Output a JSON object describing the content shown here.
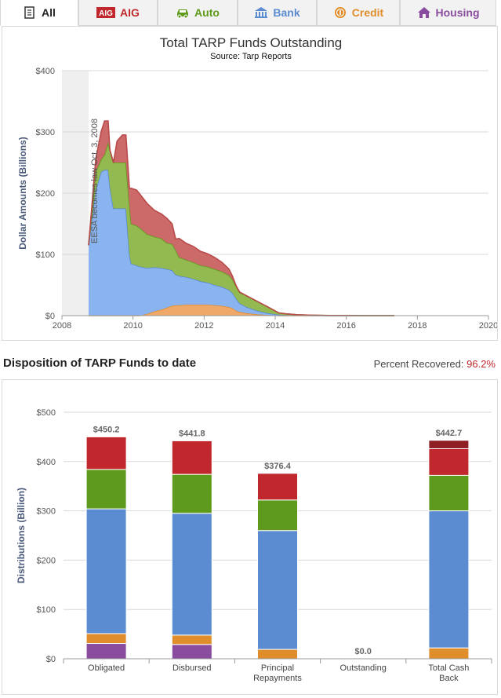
{
  "tabs": [
    {
      "label": "All",
      "icon": "document-icon",
      "color": "#222222",
      "active": true
    },
    {
      "label": "AIG",
      "icon": "aig-logo-icon",
      "color": "#c0282d",
      "active": false
    },
    {
      "label": "Auto",
      "icon": "car-icon",
      "color": "#5e9a1b",
      "active": false
    },
    {
      "label": "Bank",
      "icon": "bank-icon",
      "color": "#5b8bd0",
      "active": false
    },
    {
      "label": "Credit",
      "icon": "coin-icon",
      "color": "#e08d2b",
      "active": false
    },
    {
      "label": "Housing",
      "icon": "house-icon",
      "color": "#8a4c9e",
      "active": false
    }
  ],
  "aig_logo_text": "AIG",
  "section": {
    "title": "Disposition of TARP Funds to date",
    "recovered_label": "Percent Recovered:",
    "recovered_value": "96.2%"
  },
  "chart_data": [
    {
      "type": "area",
      "stacked": true,
      "title": "Total TARP Funds Outstanding",
      "subtitle": "Source: Tarp Reports",
      "ylabel": "Dollar Amounts (Billions)",
      "xlim": [
        2008,
        2020
      ],
      "ylim": [
        0,
        400
      ],
      "x_ticks": [
        "2008",
        "2010",
        "2012",
        "2014",
        "2016",
        "2018",
        "2020"
      ],
      "y_ticks": [
        "$0",
        "$100",
        "$200",
        "$300",
        "$400"
      ],
      "plot_band": {
        "from": 2008,
        "to": 2008.75
      },
      "annotation": "EESA becomes law Oct. 3, 2008",
      "colors": [
        "#f0a868",
        "#8ab4f0",
        "#93b951",
        "#cc6a6a"
      ],
      "lines": [
        "#e08d2b",
        "#5b8bd0",
        "#5e9a1b",
        "#b94a4a"
      ],
      "x": [
        2008.75,
        2008.95,
        2009.1,
        2009.2,
        2009.3,
        2009.35,
        2009.45,
        2009.55,
        2009.7,
        2009.8,
        2009.9,
        2009.95,
        2010.1,
        2010.2,
        2010.4,
        2010.6,
        2010.8,
        2010.95,
        2011.1,
        2011.2,
        2011.3,
        2011.5,
        2011.7,
        2011.9,
        2012.1,
        2012.3,
        2012.5,
        2012.7,
        2012.8,
        2012.9,
        2013.0,
        2013.2,
        2013.5,
        2013.8,
        2014.0,
        2014.1,
        2014.3,
        2014.6,
        2015.0,
        2015.5,
        2016.0,
        2016.5,
        2017.0,
        2017.35
      ],
      "series": [
        {
          "values": [
            0,
            0,
            0,
            0,
            0,
            0,
            0,
            0,
            0,
            0,
            0,
            0,
            0,
            0,
            3,
            7,
            10,
            13,
            16,
            17,
            17,
            18,
            18,
            18,
            18,
            17,
            16,
            14,
            12,
            8,
            6,
            4,
            2,
            1,
            0.5,
            0,
            0,
            0,
            0,
            0,
            0,
            0,
            0,
            0
          ]
        },
        {
          "values": [
            115,
            205,
            235,
            238,
            238,
            210,
            175,
            175,
            175,
            175,
            100,
            85,
            82,
            80,
            75,
            72,
            68,
            63,
            58,
            50,
            48,
            45,
            42,
            38,
            36,
            33,
            31,
            28,
            25,
            20,
            14,
            10,
            6,
            3,
            2,
            1.5,
            1,
            0.5,
            0.3,
            0.1,
            0.1,
            0,
            0,
            0
          ]
        },
        {
          "values": [
            0,
            30,
            20,
            25,
            45,
            60,
            75,
            75,
            75,
            75,
            80,
            65,
            65,
            63,
            55,
            50,
            48,
            43,
            43,
            40,
            30,
            28,
            27,
            26,
            26,
            26,
            25,
            24,
            22,
            20,
            18,
            18,
            15,
            10,
            5,
            3,
            2,
            1,
            0.5,
            0.2,
            0.1,
            0,
            0,
            0
          ]
        },
        {
          "values": [
            0,
            20,
            45,
            55,
            35,
            0,
            0,
            35,
            45,
            45,
            28,
            58,
            58,
            55,
            50,
            43,
            40,
            40,
            33,
            18,
            31,
            27,
            26,
            23,
            21,
            19,
            15,
            10,
            5,
            1,
            0.5,
            0.3,
            0.2,
            0,
            0,
            0,
            0,
            0,
            0,
            0,
            0,
            0,
            0,
            0
          ]
        }
      ]
    },
    {
      "type": "bar",
      "stacked": true,
      "ylabel": "Distributions (Billion)",
      "ylim": [
        0,
        500
      ],
      "y_ticks": [
        "$0",
        "$100",
        "$200",
        "$300",
        "$400",
        "$500"
      ],
      "categories": [
        "Obligated",
        "Disbursed",
        "Principal Repayments",
        "Outstanding",
        "Total Cash Back"
      ],
      "totals": [
        "$450.2",
        "$441.8",
        "$376.4",
        "$0.0",
        "$442.7"
      ],
      "segments": [
        {
          "color": "#8a4c9e",
          "values": [
            31,
            29,
            0,
            0,
            0
          ]
        },
        {
          "color": "#e08d2b",
          "values": [
            20,
            19,
            19,
            0,
            22
          ]
        },
        {
          "color": "#5b8bd0",
          "values": [
            253,
            247,
            241,
            0,
            278
          ]
        },
        {
          "color": "#5e9a1b",
          "values": [
            80,
            79,
            62,
            0,
            72
          ]
        },
        {
          "color": "#c0282d",
          "values": [
            66,
            68,
            54,
            0,
            54
          ]
        },
        {
          "color": "#8e1f25",
          "values": [
            0,
            0,
            0,
            0,
            17
          ]
        }
      ]
    }
  ]
}
